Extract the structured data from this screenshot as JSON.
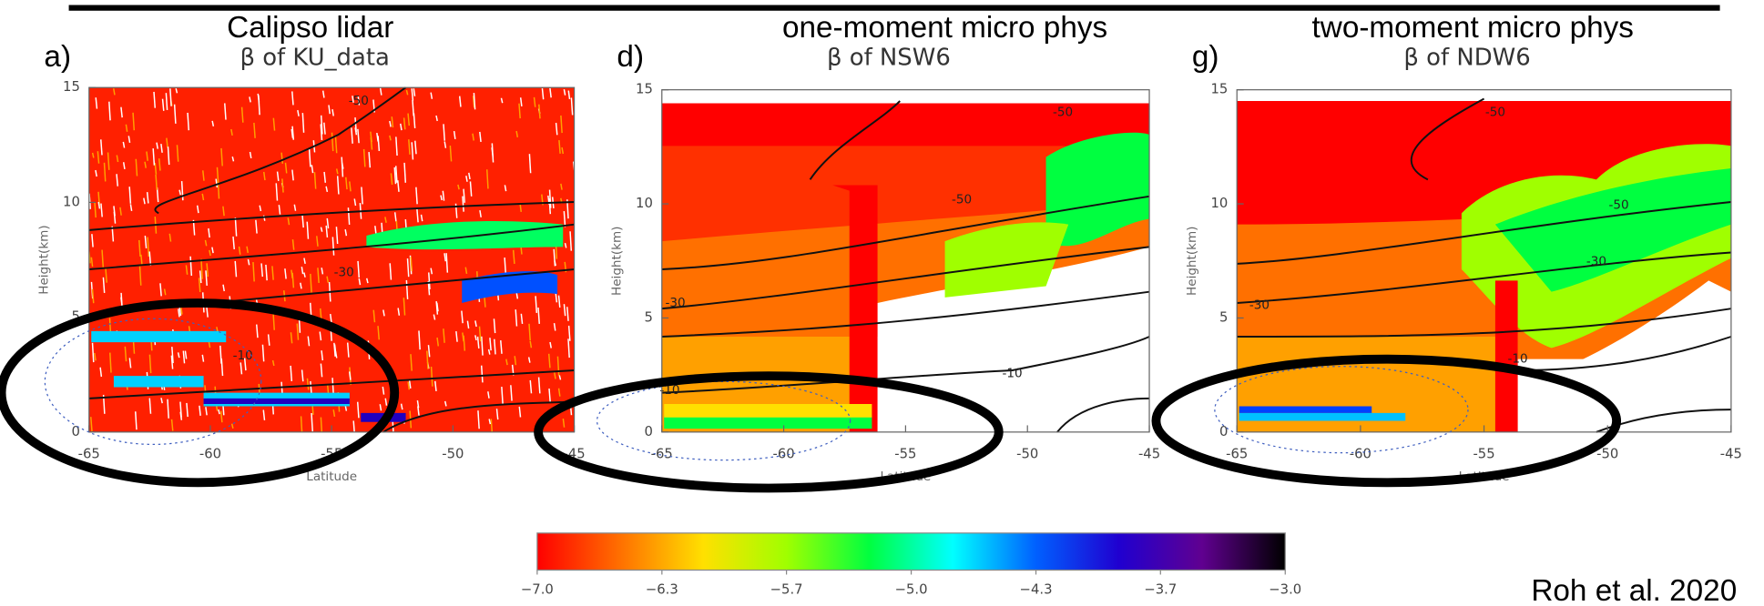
{
  "chart_data": [
    {
      "type": "contour",
      "header": "Calipso lidar",
      "panel": "a)",
      "title": "β of KU_data",
      "xlabel": "Latitude",
      "ylabel": "Height(km)",
      "xlim": [
        -65,
        -45
      ],
      "xticks": [
        -65,
        -60,
        -55,
        -50,
        -45
      ],
      "ylim": [
        0,
        15
      ],
      "yticks": [
        0,
        5,
        10,
        15
      ],
      "contour_labels": [
        -50,
        -30,
        -10
      ]
    },
    {
      "type": "contour",
      "header": "one-moment micro phys",
      "panel": "d)",
      "title": "β of NSW6",
      "xlabel": "Latitude",
      "ylabel": "Height(km)",
      "xlim": [
        -65,
        -45
      ],
      "xticks": [
        -65,
        -60,
        -55,
        -50,
        -45
      ],
      "ylim": [
        0,
        15
      ],
      "yticks": [
        0,
        5,
        10,
        15
      ],
      "contour_labels": [
        -50,
        -50,
        -30,
        -10,
        -10
      ]
    },
    {
      "type": "contour",
      "header": "two-moment micro phys",
      "panel": "g)",
      "title": "β of NDW6",
      "xlabel": "Latitude",
      "ylabel": "Height(km)",
      "xlim": [
        -65,
        -45
      ],
      "xticks": [
        -65,
        -60,
        -55,
        -50,
        -45
      ],
      "ylim": [
        0,
        15
      ],
      "yticks": [
        0,
        5,
        10,
        15
      ],
      "contour_labels": [
        -50,
        -50,
        -30,
        -30,
        -10
      ]
    },
    {
      "type": "colorbar",
      "xlim": [
        -7,
        -3
      ],
      "xticks": [
        {
          "value": -7,
          "label": "−7.0"
        },
        {
          "value": -6.333,
          "label": "−6.3"
        },
        {
          "value": -5.667,
          "label": "−5.7"
        },
        {
          "value": -5,
          "label": "−5.0"
        },
        {
          "value": -4.333,
          "label": "−4.3"
        },
        {
          "value": -3.667,
          "label": "−3.7"
        },
        {
          "value": -3,
          "label": "−3.0"
        }
      ],
      "colors": [
        "#ff0000",
        "#ff7000",
        "#ffe000",
        "#a0ff00",
        "#00ff40",
        "#00ffff",
        "#0060ff",
        "#2000d0",
        "#600090",
        "#000000"
      ]
    }
  ],
  "citation": "Roh et al. 2020"
}
